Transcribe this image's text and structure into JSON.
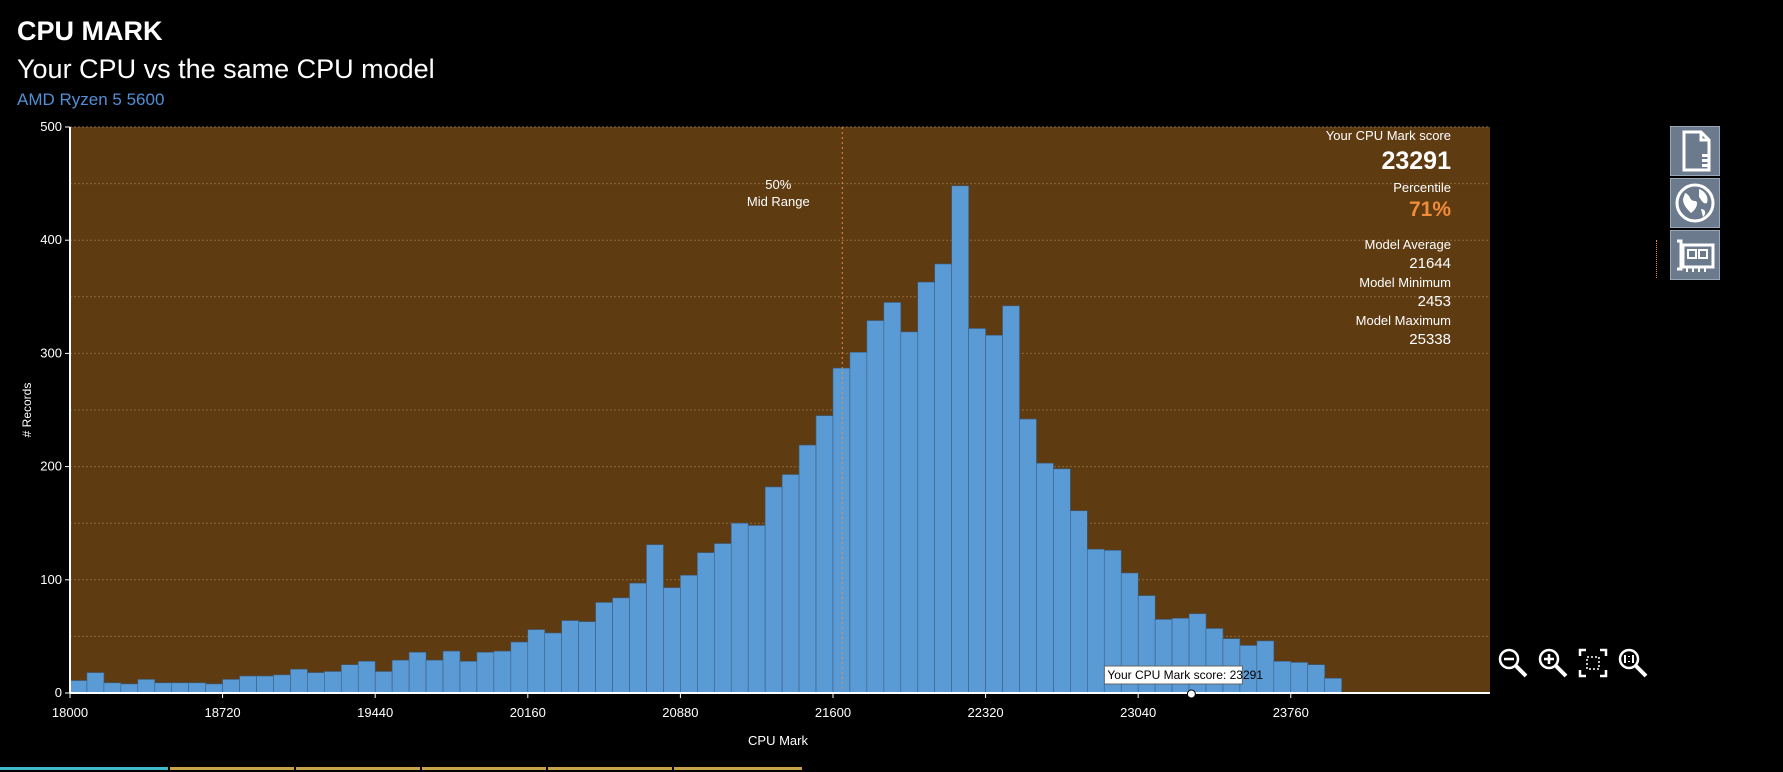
{
  "header": {
    "title": "CPU MARK",
    "subtitle": "Your CPU vs the same CPU model",
    "model": "AMD Ryzen 5 5600"
  },
  "sidebar": {
    "score_label": "Your CPU Mark score",
    "score_value": "23291",
    "percentile_label": "Percentile",
    "percentile_value": "71%",
    "avg_label": "Model Average",
    "avg_value": "21644",
    "min_label": "Model Minimum",
    "min_value": "2453",
    "max_label": "Model Maximum",
    "max_value": "25338"
  },
  "icons": [
    "document-icon",
    "globe-icon",
    "hardware-card-icon"
  ],
  "tools": [
    "zoom-out-icon",
    "zoom-in-icon",
    "fit-view-icon",
    "zoom-reset-icon"
  ],
  "colors": {
    "plot_bg": "#5f3b12",
    "bar": "#5b9bd5",
    "accent": "#f08c3a",
    "link": "#4f8fd6"
  },
  "chart_data": {
    "type": "bar",
    "title": "",
    "xlabel": "CPU Mark",
    "ylabel": "# Records",
    "xlim": [
      18000,
      24700
    ],
    "ylim": [
      0,
      500
    ],
    "x_ticks": [
      18000,
      18720,
      19440,
      20160,
      20880,
      21600,
      22320,
      23040,
      23760
    ],
    "y_ticks": [
      0,
      100,
      200,
      300,
      400,
      500
    ],
    "grid": true,
    "bin_start": 18000,
    "bin_width": 80,
    "values": [
      11,
      18,
      9,
      8,
      12,
      9,
      9,
      9,
      8,
      12,
      15,
      15,
      16,
      21,
      18,
      19,
      25,
      28,
      19,
      29,
      36,
      29,
      37,
      28,
      36,
      37,
      45,
      56,
      53,
      64,
      63,
      80,
      84,
      97,
      131,
      93,
      104,
      124,
      132,
      150,
      148,
      182,
      193,
      219,
      245,
      287,
      301,
      329,
      345,
      319,
      363,
      379,
      448,
      322,
      316,
      342,
      242,
      203,
      198,
      161,
      127,
      126,
      106,
      86,
      65,
      66,
      70,
      57,
      48,
      42,
      46,
      28,
      27,
      25,
      13
    ],
    "annotations": [
      {
        "text_line1": "50%",
        "text_line2": "Mid Range",
        "x": 21644
      },
      {
        "text": "Your CPU Mark score: 23291",
        "x": 23291
      }
    ]
  }
}
